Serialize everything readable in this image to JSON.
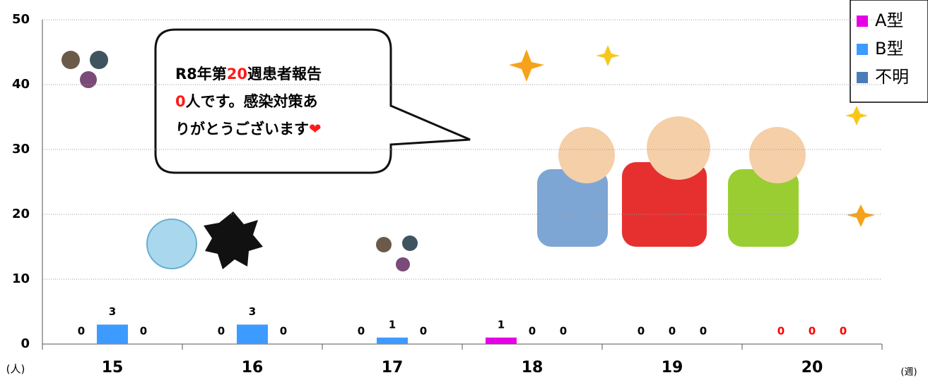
{
  "chart_data": {
    "type": "bar",
    "categories": [
      "15",
      "16",
      "17",
      "18",
      "19",
      "20"
    ],
    "series": [
      {
        "name": "A型",
        "color": "#e600e6",
        "values": [
          0,
          0,
          0,
          1,
          0,
          0
        ]
      },
      {
        "name": "B型",
        "color": "#3d9bff",
        "values": [
          3,
          3,
          1,
          0,
          0,
          0
        ]
      },
      {
        "name": "不明",
        "color": "#4a7db8",
        "values": [
          0,
          0,
          0,
          0,
          0,
          0
        ]
      }
    ],
    "value_label_colors": [
      "#000000",
      "#000000",
      "#000000",
      "#000000",
      "#000000",
      "#ff0000"
    ],
    "ylim": [
      0,
      50
    ],
    "yticks": [
      0,
      10,
      20,
      30,
      40,
      50
    ],
    "grid": true,
    "y_label": "(人)",
    "x_label": "(週)",
    "legend": "top-right",
    "annotation": [
      "R8年第",
      "20",
      "週患者報告",
      "0",
      "人です。感染対策あ",
      "りがとうございます",
      "❤"
    ]
  }
}
